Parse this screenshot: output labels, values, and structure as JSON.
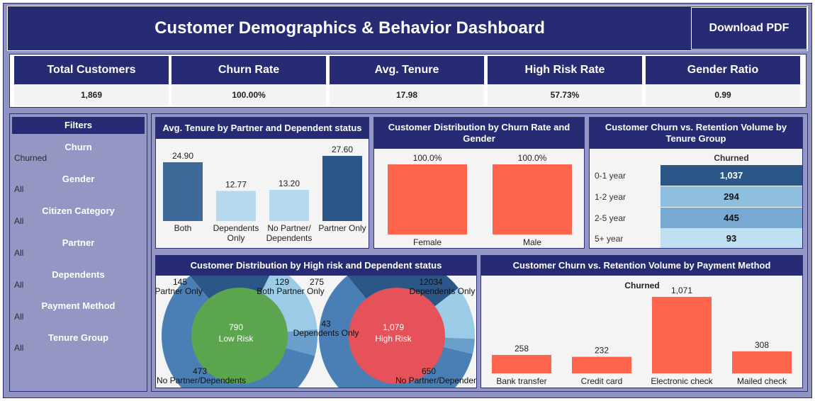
{
  "header": {
    "title": "Customer Demographics & Behavior Dashboard",
    "download_label": "Download PDF"
  },
  "kpis": [
    {
      "label": "Total Customers",
      "value": "1,869"
    },
    {
      "label": "Churn Rate",
      "value": "100.00%"
    },
    {
      "label": "Avg. Tenure",
      "value": "17.98"
    },
    {
      "label": "High Risk Rate",
      "value": "57.73%"
    },
    {
      "label": "Gender Ratio",
      "value": "0.99"
    }
  ],
  "filters": {
    "title": "Filters",
    "items": [
      {
        "label": "Churn",
        "value": "Churned"
      },
      {
        "label": "Gender",
        "value": "All"
      },
      {
        "label": "Citizen Category",
        "value": "All"
      },
      {
        "label": "Partner",
        "value": "All"
      },
      {
        "label": "Dependents",
        "value": "All"
      },
      {
        "label": "Payment Method",
        "value": "All"
      },
      {
        "label": "Tenure Group",
        "value": "All"
      }
    ]
  },
  "colors": {
    "navy": "#272b74",
    "coral": "#ff654d",
    "dark_blue": "#2b5788",
    "mid_blue": "#4a7fb5",
    "light_blue": "#b5daf0",
    "green": "#5aa54e",
    "red": "#e5525a"
  },
  "chart_data": [
    {
      "type": "bar",
      "title": "Avg. Tenure by Partner and Dependent status",
      "categories": [
        "Both",
        "Dependents Only",
        "No Partner/ Dependents",
        "Partner Only"
      ],
      "category_lines": [
        [
          "Both"
        ],
        [
          "Dependents",
          "Only"
        ],
        [
          "No Partner/",
          "Dependents"
        ],
        [
          "Partner Only"
        ]
      ],
      "values": [
        24.9,
        12.77,
        13.2,
        27.6
      ],
      "labels": [
        "24.90",
        "12.77",
        "13.20",
        "27.60"
      ],
      "bar_colors": [
        "#3d6898",
        "#b5daf0",
        "#b5daf0",
        "#2b5788"
      ],
      "ylim": [
        0,
        30
      ]
    },
    {
      "type": "bar",
      "title": "Customer Distribution by Churn Rate and Gender",
      "categories": [
        "Female",
        "Male"
      ],
      "values": [
        100.0,
        100.0
      ],
      "labels": [
        "100.0%",
        "100.0%"
      ],
      "ylim": [
        0,
        100
      ]
    },
    {
      "type": "table",
      "title": "Customer Churn vs. Retention Volume by Tenure Group",
      "column": "Churned",
      "rows": [
        {
          "label": "0-1 year",
          "value": "1,037",
          "color": "#2b5788",
          "text_color": "#ffffff"
        },
        {
          "label": "1-2 year",
          "value": "294",
          "color": "#8fbfdf",
          "text_color": "#111111"
        },
        {
          "label": "2-5 year",
          "value": "445",
          "color": "#77a9d2",
          "text_color": "#111111"
        },
        {
          "label": "5+ year",
          "value": "93",
          "color": "#bfe0f3",
          "text_color": "#111111"
        }
      ]
    },
    {
      "type": "pie",
      "title": "Customer Distribution by High risk and Dependent status",
      "charts": [
        {
          "center_value": "790",
          "center_label": "Low Risk",
          "segments": [
            {
              "name": "Partner Only",
              "value": 145,
              "label": "145"
            },
            {
              "name": "Both Partner Only",
              "value": 129,
              "label": "129"
            },
            {
              "name": "Dependents Only",
              "value": 43,
              "label": "43"
            },
            {
              "name": "No Partner/Dependents",
              "value": 473,
              "label": "473"
            }
          ]
        },
        {
          "center_value": "1,079",
          "center_label": "High Risk",
          "segments": [
            {
              "name": "Partner Only",
              "value": 275,
              "label": "275"
            },
            {
              "name": "Both",
              "value": 120,
              "label": "120"
            },
            {
              "name": "Dependents Only",
              "value": 34,
              "label": "34"
            },
            {
              "name": "No Partner/Dependents",
              "value": 650,
              "label": "650"
            }
          ],
          "overlay_labels": [
            "275",
            "12034",
            "Dependents Only",
            "650",
            "No Partner/Dependents"
          ]
        }
      ]
    },
    {
      "type": "bar",
      "title": "Customer Churn vs. Retention Volume by Payment Method",
      "subtitle": "Churned",
      "categories": [
        "Bank transfer",
        "Credit card",
        "Electronic check",
        "Mailed check"
      ],
      "values": [
        258,
        232,
        1071,
        308
      ],
      "labels": [
        "258",
        "232",
        "1,071",
        "308"
      ],
      "ylim": [
        0,
        1150
      ]
    }
  ]
}
